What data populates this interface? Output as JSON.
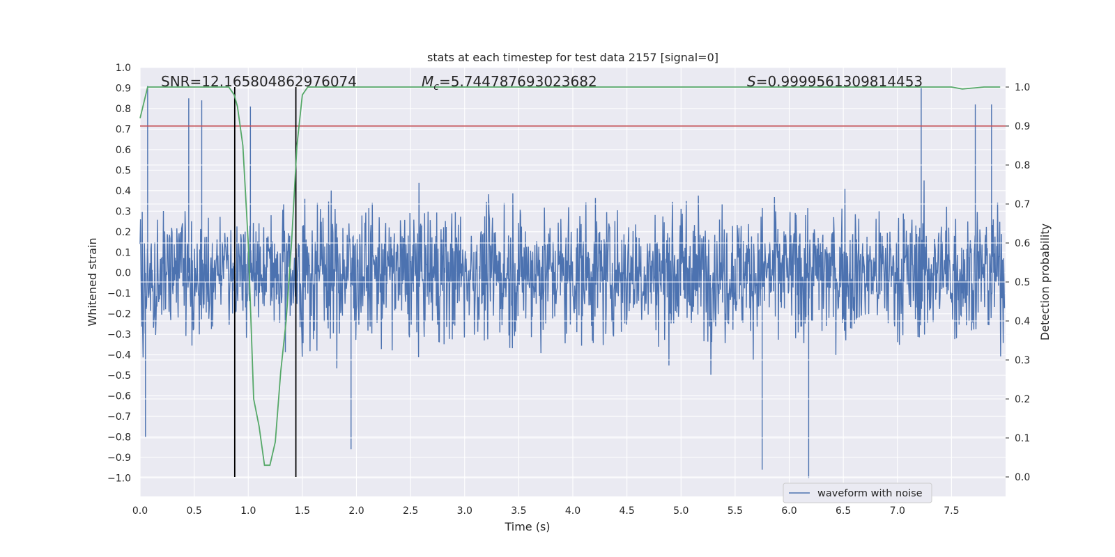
{
  "chart_data": {
    "type": "line",
    "title": "stats at each timestep for test data 2157 [signal=0]",
    "xlabel": "Time (s)",
    "ylabel_left": "Whitened strain",
    "ylabel_right": "Detection probability",
    "xlim": [
      0.0,
      8.0
    ],
    "ylim_left": [
      -1.09,
      1.0
    ],
    "ylim_right": [
      -0.05,
      1.05
    ],
    "x_ticks": [
      "0.0",
      "0.5",
      "1.0",
      "1.5",
      "2.0",
      "2.5",
      "3.0",
      "3.5",
      "4.0",
      "4.5",
      "5.0",
      "5.5",
      "6.0",
      "6.5",
      "7.0",
      "7.5"
    ],
    "y_ticks_left": [
      "−1.0",
      "−0.9",
      "−0.8",
      "−0.7",
      "−0.6",
      "−0.5",
      "−0.4",
      "−0.3",
      "−0.2",
      "−0.1",
      "0.0",
      "0.1",
      "0.2",
      "0.3",
      "0.4",
      "0.5",
      "0.6",
      "0.7",
      "0.8",
      "0.9",
      "1.0"
    ],
    "y_ticks_right": [
      "0.0",
      "0.1",
      "0.2",
      "0.3",
      "0.4",
      "0.5",
      "0.6",
      "0.7",
      "0.8",
      "0.9",
      "1.0"
    ],
    "annotations": {
      "snr": "SNR=12.165804862976074",
      "mc_symbol": "M",
      "mc_sub": "c",
      "mc_value": "=5.744787693023682",
      "s_symbol": "S",
      "s_value": "=0.9999561309814453"
    },
    "threshold": {
      "value": 0.9,
      "axis": "right",
      "color": "#c44e52"
    },
    "markers_x": [
      0.875,
      1.44
    ],
    "series": [
      {
        "name": "waveform with noise",
        "axis": "left",
        "color": "#4c72b0",
        "style": "dense noise",
        "approx_range": [
          -1.0,
          0.91
        ],
        "notable_peaks": [
          [
            0.05,
            -0.8
          ],
          [
            0.07,
            0.91
          ],
          [
            0.45,
            0.85
          ],
          [
            0.57,
            0.84
          ],
          [
            1.02,
            0.81
          ],
          [
            1.95,
            -0.86
          ],
          [
            5.75,
            -0.96
          ],
          [
            6.18,
            -1.0
          ],
          [
            7.22,
            0.9
          ],
          [
            7.72,
            0.82
          ],
          [
            7.87,
            0.82
          ]
        ]
      },
      {
        "name": "",
        "axis": "right",
        "color": "#55a868",
        "x": [
          0.0,
          0.07,
          0.15,
          0.3,
          0.5,
          0.7,
          0.82,
          0.87,
          0.9,
          0.95,
          1.0,
          1.05,
          1.1,
          1.15,
          1.2,
          1.25,
          1.3,
          1.35,
          1.4,
          1.45,
          1.5,
          1.55,
          1.6,
          2.0,
          2.5,
          3.0,
          3.5,
          4.0,
          4.5,
          5.0,
          5.5,
          6.0,
          6.5,
          7.0,
          7.3,
          7.5,
          7.6,
          7.8,
          7.95
        ],
        "y": [
          0.92,
          1.0,
          1.0,
          1.0,
          1.0,
          1.0,
          1.0,
          0.98,
          0.95,
          0.85,
          0.6,
          0.2,
          0.13,
          0.03,
          0.03,
          0.09,
          0.27,
          0.4,
          0.6,
          0.85,
          0.98,
          1.0,
          1.0,
          1.0,
          1.0,
          1.0,
          1.0,
          1.0,
          1.0,
          1.0,
          1.0,
          1.0,
          1.0,
          1.0,
          1.0,
          1.0,
          0.995,
          1.0,
          1.0
        ]
      }
    ],
    "legend": {
      "position": "lower right",
      "entries": [
        "waveform with noise"
      ]
    },
    "grid": true,
    "style": "seaborn-darkgrid",
    "colors": {
      "background": "#eaeaf2",
      "grid": "#ffffff",
      "text": "#262626",
      "marker": "#000000"
    }
  }
}
